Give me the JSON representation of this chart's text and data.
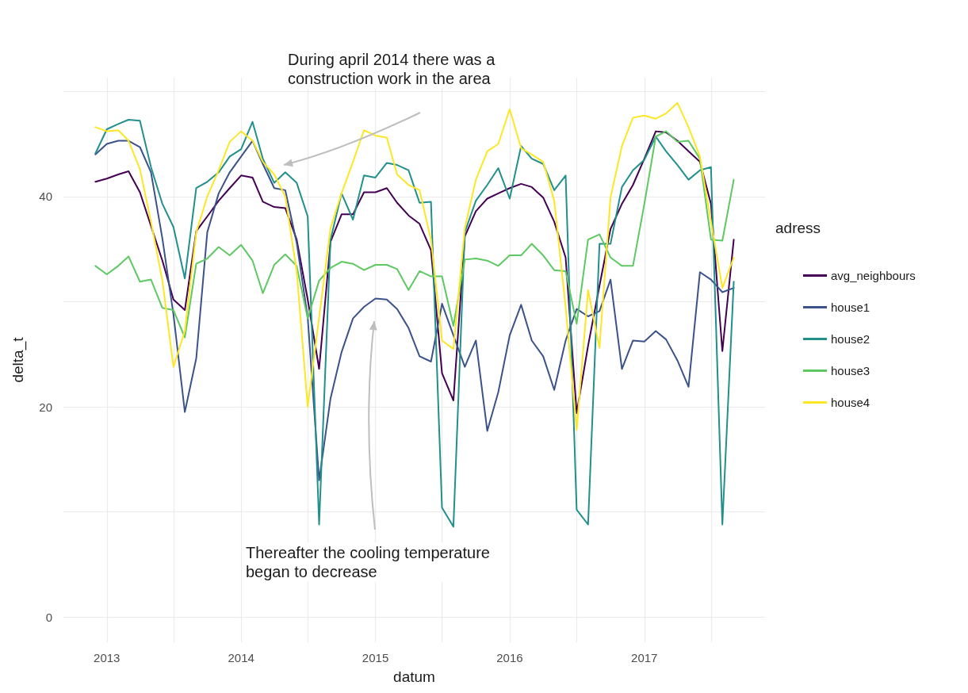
{
  "chart_data": {
    "type": "line",
    "xlabel": "datum",
    "ylabel": "delta_t",
    "legend_title": "adress",
    "x": [
      "2012-12",
      "2013-01",
      "2013-02",
      "2013-03",
      "2013-04",
      "2013-05",
      "2013-06",
      "2013-07",
      "2013-08",
      "2013-09",
      "2013-10",
      "2013-11",
      "2013-12",
      "2014-01",
      "2014-02",
      "2014-03",
      "2014-04",
      "2014-05",
      "2014-06",
      "2014-07",
      "2014-08",
      "2014-09",
      "2014-10",
      "2014-11",
      "2014-12",
      "2015-01",
      "2015-02",
      "2015-03",
      "2015-04",
      "2015-05",
      "2015-06",
      "2015-07",
      "2015-08",
      "2015-09",
      "2015-10",
      "2015-11",
      "2015-12",
      "2016-01",
      "2016-02",
      "2016-03",
      "2016-04",
      "2016-05",
      "2016-06",
      "2016-07",
      "2016-08",
      "2016-09",
      "2016-10",
      "2016-11",
      "2016-12",
      "2017-01",
      "2017-02",
      "2017-03",
      "2017-04",
      "2017-05",
      "2017-06",
      "2017-07",
      "2017-08",
      "2017-09"
    ],
    "series": [
      {
        "name": "avg_neighbours",
        "color": "#440154",
        "values": [
          41.4,
          41.7,
          42.1,
          42.4,
          40.4,
          37.2,
          33.9,
          30.2,
          29.2,
          36.7,
          38.1,
          39.6,
          40.8,
          42.0,
          41.8,
          39.5,
          39.0,
          38.9,
          35.9,
          30.2,
          23.6,
          35.7,
          38.3,
          38.3,
          40.4,
          40.4,
          40.8,
          39.4,
          38.2,
          37.4,
          34.9,
          23.2,
          20.6,
          36.2,
          38.6,
          39.8,
          40.3,
          40.8,
          41.2,
          40.9,
          39.9,
          37.6,
          34.2,
          19.4,
          25.8,
          31.5,
          36.9,
          39.3,
          41.1,
          43.6,
          46.2,
          46.1,
          45.3,
          44.3,
          43.3,
          39.3,
          25.3,
          35.9
        ]
      },
      {
        "name": "house1",
        "color": "#3b528b",
        "values": [
          44.0,
          45.0,
          45.3,
          45.3,
          44.7,
          42.3,
          36.0,
          28.8,
          19.5,
          24.6,
          36.6,
          40.3,
          42.3,
          43.8,
          45.3,
          43.1,
          40.8,
          40.6,
          35.6,
          28.5,
          13.0,
          20.8,
          25.2,
          28.4,
          29.5,
          30.3,
          30.2,
          29.3,
          27.5,
          24.8,
          24.3,
          29.8,
          26.8,
          23.8,
          26.3,
          17.7,
          21.4,
          26.8,
          29.7,
          26.3,
          24.8,
          21.6,
          26.3,
          29.3,
          28.6,
          29.1,
          32.1,
          23.6,
          26.3,
          26.2,
          27.2,
          26.4,
          24.4,
          21.9,
          32.8,
          32.1,
          30.9,
          31.3
        ]
      },
      {
        "name": "house2",
        "color": "#21908d",
        "values": [
          44.1,
          46.4,
          46.9,
          47.3,
          47.2,
          42.8,
          39.3,
          37.1,
          32.2,
          40.8,
          41.4,
          42.3,
          43.8,
          44.5,
          47.1,
          43.6,
          41.3,
          42.3,
          41.3,
          38.1,
          8.8,
          35.9,
          40.3,
          37.8,
          42.0,
          41.8,
          43.2,
          43.0,
          42.5,
          39.4,
          39.5,
          10.4,
          8.6,
          36.6,
          39.6,
          41.1,
          42.7,
          39.8,
          44.8,
          43.6,
          43.1,
          40.6,
          42.0,
          10.2,
          8.8,
          35.5,
          35.5,
          40.9,
          42.5,
          43.5,
          45.7,
          44.3,
          43.0,
          41.6,
          42.5,
          42.8,
          8.8,
          31.9
        ]
      },
      {
        "name": "house3",
        "color": "#5ec962",
        "values": [
          33.4,
          32.6,
          33.4,
          34.3,
          31.9,
          32.1,
          29.4,
          29.2,
          26.6,
          33.6,
          34.1,
          35.2,
          34.4,
          35.4,
          33.9,
          30.8,
          33.5,
          34.5,
          33.4,
          28.4,
          32.0,
          33.2,
          33.8,
          33.6,
          33.0,
          33.5,
          33.5,
          33.1,
          31.1,
          32.9,
          32.4,
          32.4,
          27.7,
          34.0,
          34.1,
          33.9,
          33.4,
          34.4,
          34.4,
          35.5,
          34.4,
          33.0,
          32.9,
          27.9,
          35.9,
          36.4,
          34.2,
          33.4,
          33.4,
          39.3,
          45.7,
          46.2,
          45.2,
          45.3,
          43.6,
          35.9,
          35.8,
          41.6
        ]
      },
      {
        "name": "house4",
        "color": "#fde725",
        "values": [
          46.6,
          46.2,
          46.3,
          45.3,
          42.6,
          37.6,
          32.0,
          23.8,
          27.2,
          36.6,
          40.0,
          42.5,
          45.2,
          46.2,
          45.3,
          43.3,
          42.1,
          40.0,
          32.9,
          20.0,
          28.5,
          37.0,
          40.3,
          43.3,
          46.3,
          45.8,
          45.6,
          42.1,
          41.1,
          40.6,
          35.9,
          26.3,
          25.5,
          37.0,
          41.6,
          44.3,
          45.0,
          48.3,
          44.6,
          44.0,
          43.3,
          39.6,
          29.5,
          17.8,
          31.1,
          25.6,
          39.9,
          44.8,
          47.5,
          47.7,
          47.4,
          47.9,
          48.9,
          46.6,
          43.8,
          37.6,
          31.3,
          34.2
        ]
      }
    ],
    "xlim": [
      "2012-09-05",
      "2017-11-25"
    ],
    "xticks": [
      {
        "value": "2013",
        "label": "2013"
      },
      {
        "value": "2013-07",
        "label": null
      },
      {
        "value": "2014",
        "label": "2014"
      },
      {
        "value": "2014-07",
        "label": null
      },
      {
        "value": "2015",
        "label": "2015"
      },
      {
        "value": "2015-07",
        "label": null
      },
      {
        "value": "2016",
        "label": "2016"
      },
      {
        "value": "2016-07",
        "label": null
      },
      {
        "value": "2017",
        "label": "2017"
      },
      {
        "value": "2017-07",
        "label": null
      }
    ],
    "ylim": [
      -2.4,
      51.3
    ],
    "yticks": [
      0,
      {
        "value": 10,
        "label": null
      },
      20,
      {
        "value": 30,
        "label": null
      },
      40,
      {
        "value": 50,
        "label": null
      }
    ],
    "annotations": [
      "During april 2014 there was a\nconstruction work in the area",
      "Thereafter the cooling temperature\nbegan to decrease"
    ],
    "grid": true,
    "legend": "right",
    "marker": "none",
    "line_style": "solid"
  }
}
